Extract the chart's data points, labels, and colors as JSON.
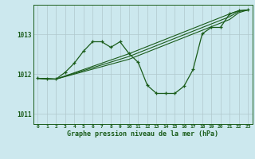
{
  "background_color": "#cce8ee",
  "grid_color": "#b0c8cc",
  "line_color": "#1a5c1a",
  "marker_color": "#1a5c1a",
  "title": "Graphe pression niveau de la mer (hPa)",
  "xlim": [
    -0.5,
    23.5
  ],
  "ylim": [
    1010.75,
    1013.75
  ],
  "yticks": [
    1011,
    1012,
    1013
  ],
  "xticks": [
    0,
    1,
    2,
    3,
    4,
    5,
    6,
    7,
    8,
    9,
    10,
    11,
    12,
    13,
    14,
    15,
    16,
    17,
    18,
    19,
    20,
    21,
    22,
    23
  ],
  "series1_x": [
    0,
    1,
    2,
    3,
    4,
    5,
    6,
    7,
    8,
    9,
    10,
    11,
    12,
    13,
    14,
    15,
    16,
    17,
    18,
    19,
    20,
    21,
    22,
    23
  ],
  "series1_y": [
    1011.9,
    1011.88,
    1011.88,
    1012.05,
    1012.28,
    1012.58,
    1012.82,
    1012.82,
    1012.68,
    1012.82,
    1012.52,
    1012.3,
    1011.72,
    1011.52,
    1011.52,
    1011.52,
    1011.7,
    1012.12,
    1013.02,
    1013.18,
    1013.18,
    1013.52,
    1013.6,
    1013.62
  ],
  "series2_x": [
    0,
    2,
    10,
    21,
    22,
    23
  ],
  "series2_y": [
    1011.9,
    1011.88,
    1012.52,
    1013.52,
    1013.6,
    1013.62
  ],
  "series3_x": [
    0,
    2,
    10,
    21,
    22,
    23
  ],
  "series3_y": [
    1011.9,
    1011.88,
    1012.45,
    1013.45,
    1013.58,
    1013.62
  ],
  "series4_x": [
    0,
    2,
    10,
    21,
    22,
    23
  ],
  "series4_y": [
    1011.9,
    1011.88,
    1012.38,
    1013.38,
    1013.55,
    1013.62
  ]
}
